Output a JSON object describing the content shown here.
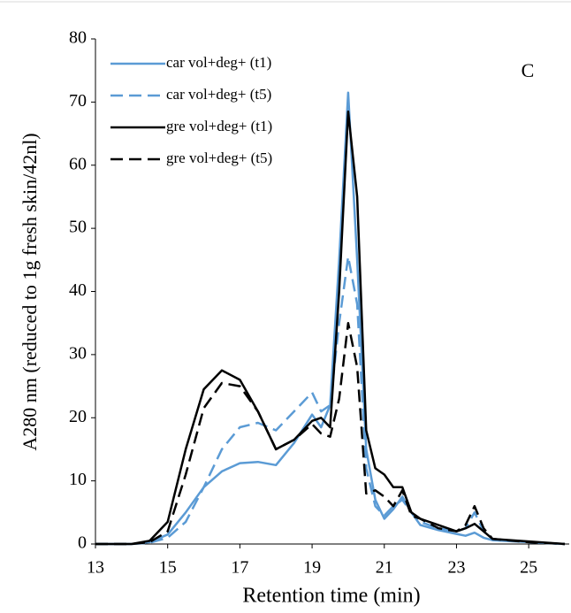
{
  "chart_data": {
    "type": "line",
    "y_label": "A280 nm (reduced to 1g fresh skin/42nl)",
    "x_label": "Retention time (min)",
    "annotation": "C",
    "x": [
      13,
      13.5,
      14,
      14.5,
      15,
      15.5,
      16,
      16.5,
      17,
      17.5,
      18,
      18.5,
      19,
      19.25,
      19.5,
      19.75,
      20,
      20.25,
      20.5,
      20.75,
      21,
      21.25,
      21.5,
      21.75,
      22,
      22.5,
      23,
      23.25,
      23.5,
      23.75,
      24,
      25,
      26
    ],
    "series": [
      {
        "name": "car vol+deg+ (t1)",
        "color": "#5b9bd5",
        "dash": false,
        "values": [
          0,
          0,
          0,
          0.3,
          1.5,
          5,
          9,
          11.5,
          12.8,
          13,
          12.5,
          16,
          20.5,
          18.5,
          22,
          45,
          71.5,
          45,
          15,
          7,
          4,
          5.5,
          7.5,
          5,
          3,
          2.2,
          1.6,
          1.3,
          1.8,
          1,
          0.6,
          0.3,
          0
        ]
      },
      {
        "name": "car vol+deg+ (t5)",
        "color": "#5b9bd5",
        "dash": true,
        "values": [
          0,
          0,
          0,
          0.2,
          1,
          3.5,
          9,
          15,
          18.5,
          19.2,
          18,
          21,
          24,
          21,
          22,
          35,
          45.5,
          38,
          12,
          6,
          4.5,
          6,
          7,
          5,
          3.5,
          2.5,
          2,
          2.5,
          5,
          2,
          0.8,
          0.3,
          0
        ]
      },
      {
        "name": "gre vol+deg+ (t1)",
        "color": "#000000",
        "dash": false,
        "values": [
          0,
          0,
          0,
          0.5,
          3.5,
          15,
          24.5,
          27.5,
          26,
          21,
          15,
          16.5,
          19.5,
          20,
          18.5,
          40,
          68.5,
          55,
          18,
          12,
          11,
          9,
          9,
          5,
          4,
          3,
          2,
          2.5,
          3.2,
          2,
          0.8,
          0.4,
          0
        ]
      },
      {
        "name": "gre vol+deg+ (t5)",
        "color": "#000000",
        "dash": true,
        "values": [
          0,
          0,
          0,
          0.3,
          2,
          11,
          21.5,
          25.5,
          25,
          21,
          15,
          16.5,
          19,
          17.5,
          17,
          23,
          35,
          28,
          8,
          8.5,
          7.5,
          6,
          8.5,
          4.5,
          4,
          2.5,
          2,
          3,
          6,
          2.5,
          0.8,
          0.3,
          0
        ]
      }
    ],
    "xlim": [
      13,
      26
    ],
    "xticks": [
      13,
      15,
      17,
      19,
      21,
      23,
      25
    ],
    "ylim": [
      0,
      80
    ],
    "yticks": [
      0,
      10,
      20,
      30,
      40,
      50,
      60,
      70,
      80
    ],
    "legend": "upper-left"
  }
}
